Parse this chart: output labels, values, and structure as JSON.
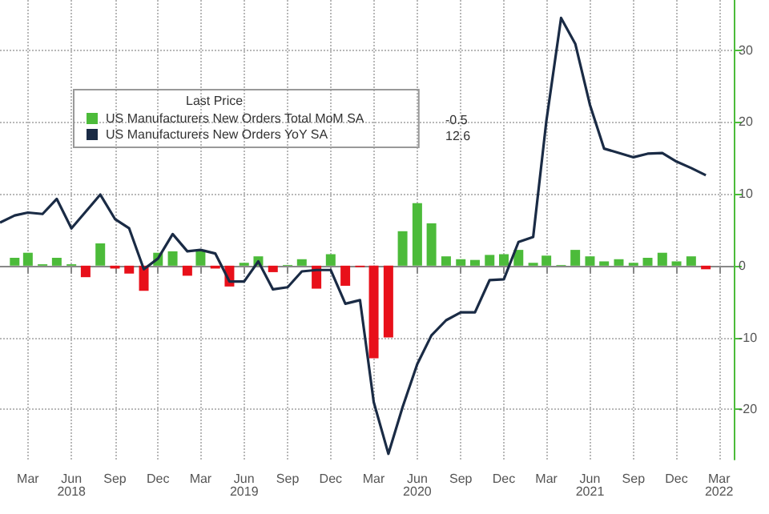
{
  "chart_data": {
    "type": "bar",
    "legend_title": "Last Price",
    "legend": "top left",
    "grid": true,
    "xlim": [
      "2018-01-01",
      "2022-04-01"
    ],
    "annotations": [
      "-0.5",
      "12.6"
    ],
    "xticks": [
      {
        "value": "2018-03",
        "label": "Mar"
      },
      {
        "value": "2018-06",
        "label": "Jun\n2018"
      },
      {
        "value": "2018-09",
        "label": "Sep"
      },
      {
        "value": "2018-12",
        "label": "Dec"
      },
      {
        "value": "2019-03",
        "label": "Mar"
      },
      {
        "value": "2019-06",
        "label": "Jun\n2019"
      },
      {
        "value": "2019-09",
        "label": "Sep"
      },
      {
        "value": "2019-12",
        "label": "Dec"
      },
      {
        "value": "2020-03",
        "label": "Mar"
      },
      {
        "value": "2020-06",
        "label": "Jun\n2020"
      },
      {
        "value": "2020-09",
        "label": "Sep"
      },
      {
        "value": "2020-12",
        "label": "Dec"
      },
      {
        "value": "2021-03",
        "label": "Mar"
      },
      {
        "value": "2021-06",
        "label": "Jun\n2021"
      },
      {
        "value": "2021-09",
        "label": "Sep"
      },
      {
        "value": "2021-12",
        "label": "Dec"
      },
      {
        "value": "2022-03",
        "label": "Mar\n2022"
      }
    ],
    "ylim": [
      -27,
      37
    ],
    "yticks": [
      -20,
      -10,
      0,
      10,
      20,
      30
    ],
    "series": [
      {
        "name": "US Manufacturers New Orders Total MoM SA",
        "color": "#4cbb3a",
        "x": [
          "2018-02",
          "2018-03",
          "2018-04",
          "2018-05",
          "2018-06",
          "2018-07",
          "2018-08",
          "2018-09",
          "2018-10",
          "2018-11",
          "2018-12",
          "2019-01",
          "2019-02",
          "2019-03",
          "2019-04",
          "2019-05",
          "2019-06",
          "2019-07",
          "2019-08",
          "2019-09",
          "2019-10",
          "2019-11",
          "2019-12",
          "2020-01",
          "2020-02",
          "2020-03",
          "2020-04",
          "2020-05",
          "2020-06",
          "2020-07",
          "2020-08",
          "2020-09",
          "2020-10",
          "2020-11",
          "2020-12",
          "2021-01",
          "2021-02",
          "2021-03",
          "2021-04",
          "2021-05",
          "2021-06",
          "2021-07",
          "2021-08",
          "2021-09",
          "2021-10",
          "2021-11",
          "2021-12",
          "2022-01",
          "2022-02"
        ],
        "values": [
          1.1,
          1.8,
          0.2,
          1.1,
          0.2,
          -1.6,
          3.1,
          -0.4,
          -1.1,
          -3.5,
          1.8,
          2.0,
          -1.4,
          2.2,
          -0.4,
          -2.9,
          0.4,
          1.3,
          -0.9,
          0.1,
          0.9,
          -3.2,
          1.6,
          -2.8,
          -0.2,
          -12.9,
          -10.0,
          4.8,
          8.7,
          5.9,
          1.3,
          0.9,
          0.8,
          1.5,
          1.6,
          2.2,
          0.4,
          1.4,
          0.1,
          2.2,
          1.3,
          0.6,
          0.9,
          0.4,
          1.1,
          1.8,
          0.6,
          1.3,
          -0.5
        ],
        "colors": [
          "#4cbb3a",
          "#4cbb3a",
          "#4cbb3a",
          "#4cbb3a",
          "#4cbb3a",
          "#e8101a",
          "#4cbb3a",
          "#e8101a",
          "#e8101a",
          "#e8101a",
          "#4cbb3a",
          "#4cbb3a",
          "#e8101a",
          "#4cbb3a",
          "#e8101a",
          "#e8101a",
          "#4cbb3a",
          "#4cbb3a",
          "#e8101a",
          "#4cbb3a",
          "#4cbb3a",
          "#e8101a",
          "#4cbb3a",
          "#e8101a",
          "#e8101a",
          "#e8101a",
          "#e8101a",
          "#4cbb3a",
          "#4cbb3a",
          "#4cbb3a",
          "#4cbb3a",
          "#4cbb3a",
          "#4cbb3a",
          "#4cbb3a",
          "#4cbb3a",
          "#4cbb3a",
          "#4cbb3a",
          "#4cbb3a",
          "#4cbb3a",
          "#4cbb3a",
          "#4cbb3a",
          "#4cbb3a",
          "#4cbb3a",
          "#4cbb3a",
          "#4cbb3a",
          "#4cbb3a",
          "#4cbb3a",
          "#4cbb3a",
          "#e8101a"
        ]
      },
      {
        "name": "US Manufacturers New Orders YoY SA",
        "type": "line",
        "color": "#1a2b45",
        "x": [
          "2018-01",
          "2018-02",
          "2018-03",
          "2018-04",
          "2018-05",
          "2018-06",
          "2018-07",
          "2018-08",
          "2018-09",
          "2018-10",
          "2018-11",
          "2018-12",
          "2019-01",
          "2019-02",
          "2019-03",
          "2019-04",
          "2019-05",
          "2019-06",
          "2019-07",
          "2019-08",
          "2019-09",
          "2019-10",
          "2019-11",
          "2019-12",
          "2020-01",
          "2020-02",
          "2020-03",
          "2020-04",
          "2020-05",
          "2020-06",
          "2020-07",
          "2020-08",
          "2020-09",
          "2020-10",
          "2020-11",
          "2020-12",
          "2021-01",
          "2021-02",
          "2021-03",
          "2021-04",
          "2021-05",
          "2021-06",
          "2021-07",
          "2021-08",
          "2021-09",
          "2021-10",
          "2021-11",
          "2021-12",
          "2022-01",
          "2022-02"
        ],
        "values": [
          6.0,
          7.0,
          7.4,
          7.2,
          9.3,
          5.2,
          7.5,
          9.9,
          6.5,
          5.2,
          -0.5,
          1.0,
          4.4,
          2.0,
          2.2,
          1.7,
          -2.2,
          -2.2,
          0.6,
          -3.3,
          -3.0,
          -0.8,
          -0.6,
          -0.6,
          -5.3,
          -4.8,
          -19.0,
          -26.2,
          -19.7,
          -13.7,
          -9.7,
          -7.6,
          -6.5,
          -6.5,
          -2.0,
          -1.9,
          3.3,
          4.0,
          20.2,
          34.5,
          30.9,
          22.4,
          16.3,
          15.7,
          15.1,
          15.6,
          15.7,
          14.5,
          13.6,
          12.6
        ]
      }
    ]
  }
}
